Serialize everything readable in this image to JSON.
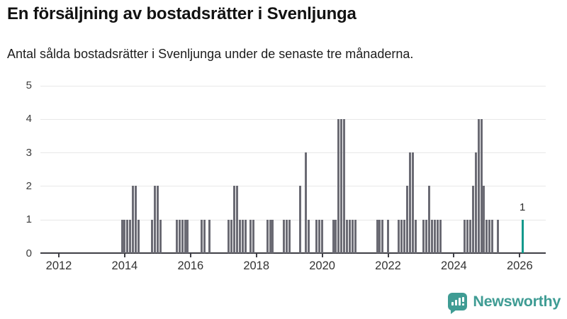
{
  "header": {
    "title": "En försäljning av bostadsrätter i Svenljunga",
    "subtitle": "Antal sålda bostadsrätter i Svenljunga under de senaste tre månaderna."
  },
  "branding": {
    "logo_text": "Newsworthy",
    "logo_icon": "bar-chart-speech-bubble-icon"
  },
  "colors": {
    "bar": "#6b6b74",
    "highlight": "#13998c",
    "grid": "#e8e8e8",
    "axis": "#3f3f46",
    "brand": "#3f9c94"
  },
  "chart_data": {
    "type": "bar",
    "title": "En försäljning av bostadsrätter i Svenljunga",
    "subtitle": "Antal sålda bostadsrätter i Svenljunga under de senaste tre månaderna.",
    "ylim": [
      0,
      5
    ],
    "y_ticks": [
      0,
      1,
      2,
      3,
      4,
      5
    ],
    "x_tick_labels": [
      "2012",
      "2014",
      "2016",
      "2018",
      "2020",
      "2022",
      "2024",
      "2026"
    ],
    "x_range_months": [
      "2011-07",
      "2026-11"
    ],
    "grid": true,
    "legend": "none",
    "highlight_label": "1",
    "points": [
      {
        "m": "2013-12",
        "v": 1
      },
      {
        "m": "2014-01",
        "v": 1
      },
      {
        "m": "2014-02",
        "v": 1
      },
      {
        "m": "2014-03",
        "v": 1
      },
      {
        "m": "2014-04",
        "v": 2
      },
      {
        "m": "2014-05",
        "v": 2
      },
      {
        "m": "2014-06",
        "v": 1
      },
      {
        "m": "2014-11",
        "v": 1
      },
      {
        "m": "2014-12",
        "v": 2
      },
      {
        "m": "2015-01",
        "v": 2
      },
      {
        "m": "2015-02",
        "v": 1
      },
      {
        "m": "2015-08",
        "v": 1
      },
      {
        "m": "2015-09",
        "v": 1
      },
      {
        "m": "2015-10",
        "v": 1
      },
      {
        "m": "2015-11",
        "v": 1
      },
      {
        "m": "2015-12",
        "v": 1
      },
      {
        "m": "2016-05",
        "v": 1
      },
      {
        "m": "2016-06",
        "v": 1
      },
      {
        "m": "2016-08",
        "v": 1
      },
      {
        "m": "2017-03",
        "v": 1
      },
      {
        "m": "2017-04",
        "v": 1
      },
      {
        "m": "2017-05",
        "v": 2
      },
      {
        "m": "2017-06",
        "v": 2
      },
      {
        "m": "2017-07",
        "v": 1
      },
      {
        "m": "2017-08",
        "v": 1
      },
      {
        "m": "2017-09",
        "v": 1
      },
      {
        "m": "2017-11",
        "v": 1
      },
      {
        "m": "2017-12",
        "v": 1
      },
      {
        "m": "2018-05",
        "v": 1
      },
      {
        "m": "2018-06",
        "v": 1
      },
      {
        "m": "2018-07",
        "v": 1
      },
      {
        "m": "2018-11",
        "v": 1
      },
      {
        "m": "2018-12",
        "v": 1
      },
      {
        "m": "2019-01",
        "v": 1
      },
      {
        "m": "2019-05",
        "v": 2
      },
      {
        "m": "2019-07",
        "v": 3
      },
      {
        "m": "2019-08",
        "v": 1
      },
      {
        "m": "2019-11",
        "v": 1
      },
      {
        "m": "2019-12",
        "v": 1
      },
      {
        "m": "2020-01",
        "v": 1
      },
      {
        "m": "2020-05",
        "v": 1
      },
      {
        "m": "2020-06",
        "v": 1
      },
      {
        "m": "2020-07",
        "v": 4
      },
      {
        "m": "2020-08",
        "v": 4
      },
      {
        "m": "2020-09",
        "v": 4
      },
      {
        "m": "2020-10",
        "v": 1
      },
      {
        "m": "2020-11",
        "v": 1
      },
      {
        "m": "2020-12",
        "v": 1
      },
      {
        "m": "2021-01",
        "v": 1
      },
      {
        "m": "2021-09",
        "v": 1
      },
      {
        "m": "2021-10",
        "v": 1
      },
      {
        "m": "2021-11",
        "v": 1
      },
      {
        "m": "2022-01",
        "v": 1
      },
      {
        "m": "2022-05",
        "v": 1
      },
      {
        "m": "2022-06",
        "v": 1
      },
      {
        "m": "2022-07",
        "v": 1
      },
      {
        "m": "2022-08",
        "v": 2
      },
      {
        "m": "2022-09",
        "v": 3
      },
      {
        "m": "2022-10",
        "v": 3
      },
      {
        "m": "2022-11",
        "v": 1
      },
      {
        "m": "2023-02",
        "v": 1
      },
      {
        "m": "2023-03",
        "v": 1
      },
      {
        "m": "2023-04",
        "v": 2
      },
      {
        "m": "2023-05",
        "v": 1
      },
      {
        "m": "2023-06",
        "v": 1
      },
      {
        "m": "2023-07",
        "v": 1
      },
      {
        "m": "2023-08",
        "v": 1
      },
      {
        "m": "2024-05",
        "v": 1
      },
      {
        "m": "2024-06",
        "v": 1
      },
      {
        "m": "2024-07",
        "v": 1
      },
      {
        "m": "2024-08",
        "v": 2
      },
      {
        "m": "2024-09",
        "v": 3
      },
      {
        "m": "2024-10",
        "v": 4
      },
      {
        "m": "2024-11",
        "v": 4
      },
      {
        "m": "2024-12",
        "v": 2
      },
      {
        "m": "2025-01",
        "v": 1
      },
      {
        "m": "2025-02",
        "v": 1
      },
      {
        "m": "2025-03",
        "v": 1
      },
      {
        "m": "2025-05",
        "v": 1
      },
      {
        "m": "2026-02",
        "v": 1,
        "highlight": true
      }
    ]
  }
}
